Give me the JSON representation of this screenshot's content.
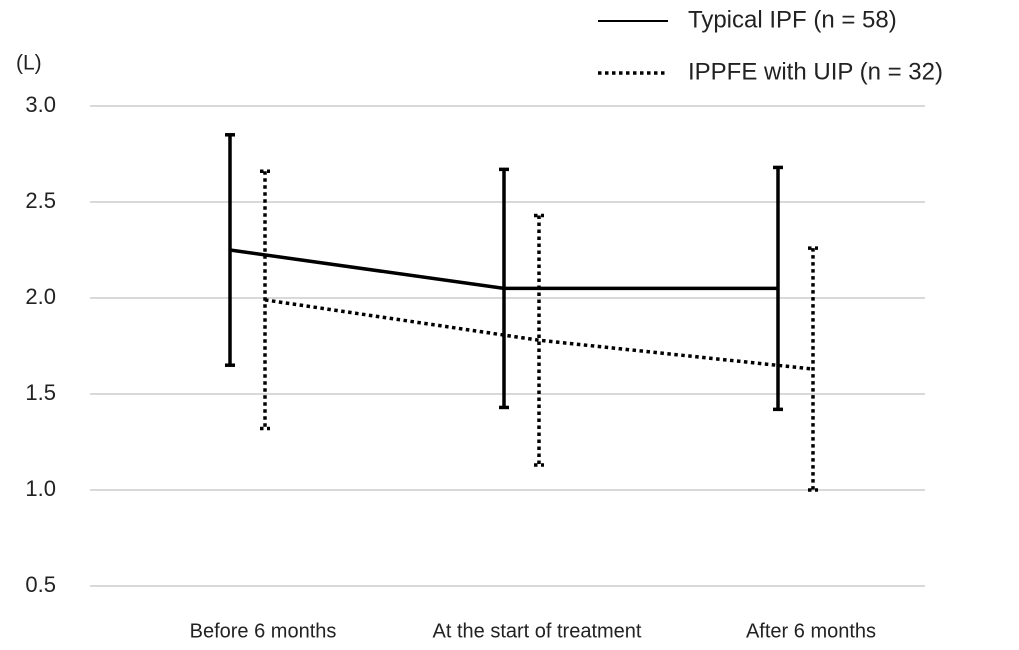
{
  "chart_data": {
    "type": "line",
    "y_label": "(L)",
    "categories": [
      "Before 6 months",
      "At the start of treatment",
      "After 6 months"
    ],
    "series": [
      {
        "name": "Typical IPF (n = 58)",
        "color": "#000000",
        "style": "solid",
        "values": [
          2.25,
          2.05,
          2.05
        ],
        "errors": [
          0.6,
          0.62,
          0.63
        ]
      },
      {
        "name": "IPPFE with UIP (n = 32)",
        "color": "#000000",
        "style": "dotted",
        "values": [
          1.99,
          1.78,
          1.63
        ],
        "errors": [
          0.67,
          0.65,
          0.63
        ]
      }
    ],
    "ylim": [
      0.5,
      3.0
    ],
    "yticks": [
      0.5,
      {
        "value": 1,
        "label": "1.0"
      },
      1.5,
      {
        "value": 2,
        "label": "2.0"
      },
      2.5,
      {
        "value": 3,
        "label": "3.0"
      }
    ],
    "grid": true,
    "legend": "top-right"
  }
}
